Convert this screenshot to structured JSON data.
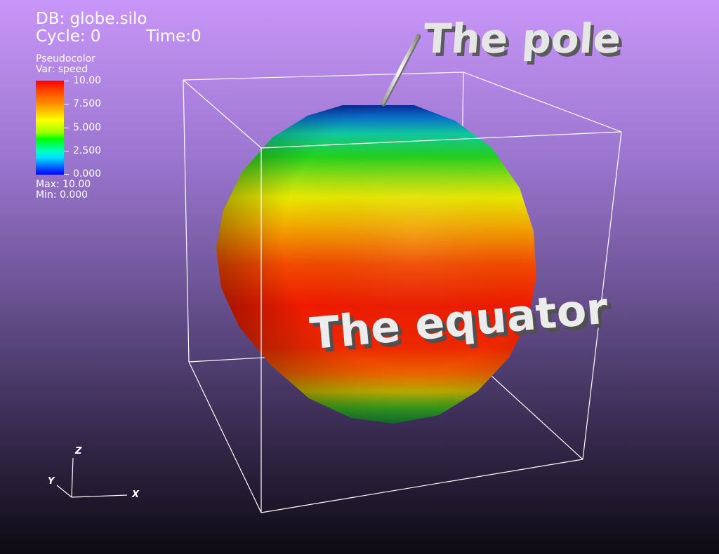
{
  "hud": {
    "db": "DB: globe.silo",
    "cycle": "Cycle: 0",
    "time": "Time:0"
  },
  "legend": {
    "plot_type": "Pseudocolor",
    "var": "Var: speed",
    "ticks": [
      "10.00",
      "7.500",
      "5.000",
      "2.500",
      "0.000"
    ],
    "max": "Max:  10.00",
    "min": "Min:  0.000"
  },
  "annotations": {
    "pole": "The pole",
    "equator": "The equator"
  },
  "axes": {
    "x": "X",
    "y": "Y",
    "z": "Z"
  },
  "colors": {
    "background_top": "#c896f8",
    "background_bottom": "#0c0a12",
    "bbox": "#ffffff",
    "text": "#ffffff",
    "annotation_text": "#e8e8e8"
  }
}
